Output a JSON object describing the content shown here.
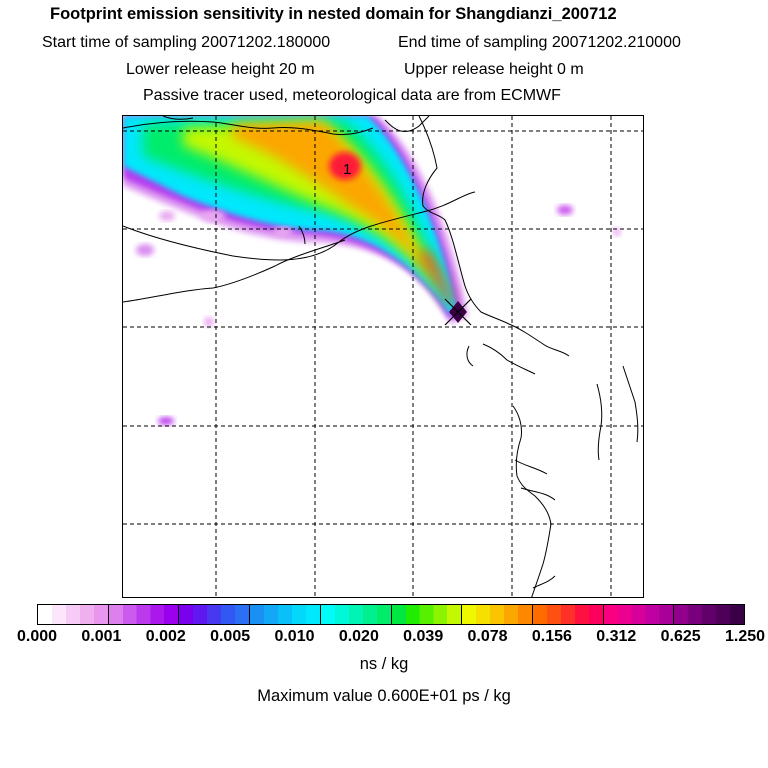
{
  "header": {
    "title": "Footprint emission sensitivity in nested domain for Shangdianzi_200712",
    "start": "Start time of sampling 20071202.180000",
    "end": "End time of sampling 20071202.210000",
    "lower": "Lower release height   20 m",
    "upper": "Upper release height    0 m",
    "tracer": "Passive tracer used, meteorological data are from ECMWF"
  },
  "map": {
    "max_label": "1",
    "receptor_marker": "receptor-diamond-icon"
  },
  "colorbar": {
    "ticks": [
      "0.000",
      "0.001",
      "0.002",
      "0.005",
      "0.010",
      "0.020",
      "0.039",
      "0.078",
      "0.156",
      "0.312",
      "0.625",
      "1.250"
    ],
    "unit": "ns / kg",
    "max_value": "Maximum value  0.600E+01 ps / kg",
    "colors": [
      [
        "#ffffff",
        "#fbe6fb",
        "#f6ccf6",
        "#f0b0f0",
        "#e996ee"
      ],
      [
        "#dd80ee",
        "#cc5aee",
        "#bb3aee",
        "#aa18ee",
        "#9a00ee"
      ],
      [
        "#7a00ee",
        "#6018f0",
        "#4838f0",
        "#3258f2",
        "#2a6ff4"
      ],
      [
        "#1a90f5",
        "#12a8f6",
        "#0ac0f8",
        "#04d8fa",
        "#00e8fc"
      ],
      [
        "#00fcf6",
        "#00f8d8",
        "#00f4b4",
        "#00f090",
        "#00ec6a"
      ],
      [
        "#00e840",
        "#20ec00",
        "#56f000",
        "#8cf400",
        "#c4f800"
      ],
      [
        "#f0f800",
        "#f6e000",
        "#fac400",
        "#fca600",
        "#fd8800"
      ],
      [
        "#fe6c00",
        "#fe5010",
        "#fe3028",
        "#fe1040",
        "#fe005c"
      ],
      [
        "#fa0080",
        "#ec0090",
        "#d8009a",
        "#c000a0",
        "#a80098"
      ],
      [
        "#90008c",
        "#78007c",
        "#62006a",
        "#4e0058",
        "#3a0046"
      ]
    ]
  }
}
